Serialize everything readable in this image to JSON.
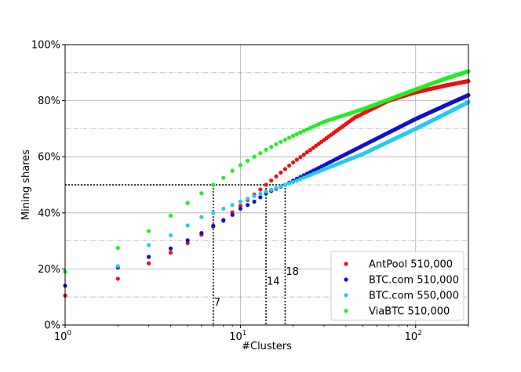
{
  "chart_data": {
    "type": "scatter",
    "xlabel": "#Clusters",
    "ylabel": "Mining shares",
    "x_scale": "log",
    "xlim": [
      1,
      200
    ],
    "ylim": [
      0,
      100
    ],
    "x_ticks": [
      {
        "value": 1,
        "label": "10",
        "exp": "0"
      },
      {
        "value": 10,
        "label": "10",
        "exp": "1"
      },
      {
        "value": 100,
        "label": "10",
        "exp": "2"
      }
    ],
    "y_ticks": [
      {
        "value": 0,
        "label": "0%"
      },
      {
        "value": 20,
        "label": "20%"
      },
      {
        "value": 40,
        "label": "40%"
      },
      {
        "value": 60,
        "label": "60%"
      },
      {
        "value": 80,
        "label": "80%"
      },
      {
        "value": 100,
        "label": "100%"
      }
    ],
    "grid": true,
    "legend_position": "bottom-right",
    "series": [
      {
        "name": "AntPool 510,000",
        "color": "#ee1111",
        "anchors": [
          [
            1,
            10.5
          ],
          [
            2,
            16.5
          ],
          [
            3,
            22
          ],
          [
            4,
            25.8
          ],
          [
            5,
            29.2
          ],
          [
            6,
            32.2
          ],
          [
            7,
            35.5
          ],
          [
            8,
            37.5
          ],
          [
            9,
            40.2
          ],
          [
            10,
            42.5
          ],
          [
            12,
            46.5
          ],
          [
            14,
            50
          ],
          [
            16,
            53
          ],
          [
            20,
            58
          ],
          [
            30,
            66
          ],
          [
            45,
            74
          ],
          [
            70,
            80
          ],
          [
            100,
            83
          ],
          [
            150,
            85.5
          ],
          [
            200,
            87
          ]
        ]
      },
      {
        "name": "BTC.com 510,000",
        "color": "#1111cc",
        "anchors": [
          [
            1,
            14
          ],
          [
            2,
            20.5
          ],
          [
            3,
            24.3
          ],
          [
            4,
            27.3
          ],
          [
            5,
            30.2
          ],
          [
            6,
            32.8
          ],
          [
            7,
            35.2
          ],
          [
            8,
            37.2
          ],
          [
            9,
            39.3
          ],
          [
            10,
            41.5
          ],
          [
            12,
            44
          ],
          [
            14,
            47
          ],
          [
            18,
            50
          ],
          [
            20,
            51.5
          ],
          [
            30,
            57
          ],
          [
            50,
            64
          ],
          [
            100,
            73.5
          ],
          [
            150,
            78.5
          ],
          [
            200,
            82
          ]
        ]
      },
      {
        "name": "BTC.com 550,000",
        "color": "#22ccee",
        "anchors": [
          [
            1,
            19
          ],
          [
            2,
            21
          ],
          [
            3,
            28.5
          ],
          [
            4,
            32
          ],
          [
            5,
            35.5
          ],
          [
            6,
            38.5
          ],
          [
            7,
            40
          ],
          [
            8,
            41.5
          ],
          [
            9,
            42.8
          ],
          [
            10,
            44
          ],
          [
            12,
            46
          ],
          [
            14,
            47.6
          ],
          [
            18,
            50
          ],
          [
            20,
            51
          ],
          [
            30,
            55.5
          ],
          [
            50,
            61
          ],
          [
            100,
            70
          ],
          [
            150,
            75.5
          ],
          [
            200,
            79.5
          ]
        ]
      },
      {
        "name": "ViaBTC 510,000",
        "color": "#22ee22",
        "anchors": [
          [
            1,
            19
          ],
          [
            2,
            27.5
          ],
          [
            3,
            33.5
          ],
          [
            4,
            39
          ],
          [
            5,
            43.5
          ],
          [
            6,
            47
          ],
          [
            7,
            50
          ],
          [
            8,
            52.5
          ],
          [
            9,
            55
          ],
          [
            10,
            57
          ],
          [
            12,
            60
          ],
          [
            14,
            62.5
          ],
          [
            16,
            64.5
          ],
          [
            20,
            67.5
          ],
          [
            30,
            72.5
          ],
          [
            50,
            77
          ],
          [
            100,
            84
          ],
          [
            150,
            88
          ],
          [
            200,
            90.5
          ]
        ]
      }
    ],
    "annotations": [
      {
        "x": 7,
        "label": "7",
        "label_y": 8
      },
      {
        "x": 14,
        "label": "14",
        "label_y": 15.5
      },
      {
        "x": 18,
        "label": "18",
        "label_y": 19
      }
    ],
    "threshold": {
      "y": 50
    }
  }
}
